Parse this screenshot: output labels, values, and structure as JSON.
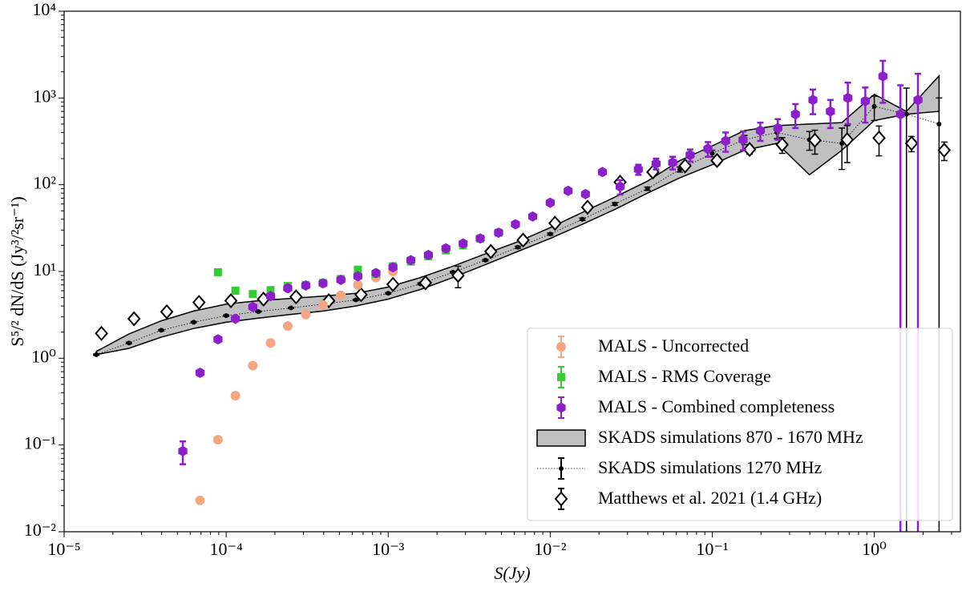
{
  "chart_data": {
    "type": "scatter",
    "xscale": "log",
    "yscale": "log",
    "xlabel": "S(Jy)",
    "ylabel": "S⁵/² dN/dS (Jy³/²sr⁻¹)",
    "xlim": [
      1e-05,
      3.4
    ],
    "ylim": [
      0.01,
      10000
    ],
    "xticks": [
      {
        "value": 1e-05,
        "label": "10⁻⁵"
      },
      {
        "value": 0.0001,
        "label": "10⁻⁴"
      },
      {
        "value": 0.001,
        "label": "10⁻³"
      },
      {
        "value": 0.01,
        "label": "10⁻²"
      },
      {
        "value": 0.1,
        "label": "10⁻¹"
      },
      {
        "value": 1,
        "label": "10⁰"
      }
    ],
    "yticks": [
      {
        "value": 0.01,
        "label": "10⁻²"
      },
      {
        "value": 0.1,
        "label": "10⁻¹"
      },
      {
        "value": 1,
        "label": "10⁰"
      },
      {
        "value": 10,
        "label": "10¹"
      },
      {
        "value": 100,
        "label": "10²"
      },
      {
        "value": 1000,
        "label": "10³"
      },
      {
        "value": 10000,
        "label": "10⁴"
      }
    ],
    "legend": "lower right",
    "series": [
      {
        "name": "MALS - Uncorrected",
        "color": "#f4a582",
        "marker": "circle",
        "x": [
          6.9e-05,
          8.9e-05,
          0.000114,
          0.000146,
          0.000188,
          0.00024,
          0.00031,
          0.000396,
          0.00051,
          0.00065,
          0.00084,
          0.00107
        ],
        "values": [
          0.023,
          0.115,
          0.37,
          0.82,
          1.5,
          2.35,
          3.2,
          4.1,
          5.3,
          7.0,
          8.5,
          10
        ]
      },
      {
        "name": "MALS - RMS Coverage",
        "color": "#33cc33",
        "marker": "square",
        "x": [
          8.9e-05,
          0.000114,
          0.000146,
          0.000188,
          0.00024,
          0.00031,
          0.000396,
          0.00051,
          0.00065,
          0.00084,
          0.00107,
          0.00138,
          0.00177,
          0.00227,
          0.0029,
          0.0037,
          0.0048
        ],
        "values": [
          9.8,
          6.0,
          5.5,
          6.1,
          6.8,
          7.0,
          7.4,
          8.2,
          10.5,
          9.4,
          11.5,
          13,
          15,
          17.5,
          20,
          24,
          28
        ],
        "errors": [
          0.3,
          0.2,
          0.2,
          0.2,
          0.2,
          0.2,
          0.2,
          0.3,
          0.4,
          0.4,
          0.5,
          0.5,
          0.6,
          0.7,
          0.8,
          1,
          1.2
        ]
      },
      {
        "name": "MALS - Combined completeness",
        "color": "#8b1fc9",
        "marker": "hexagon",
        "x": [
          5.4e-05,
          6.9e-05,
          8.9e-05,
          0.000114,
          0.000146,
          0.000188,
          0.00024,
          0.00031,
          0.000396,
          0.00051,
          0.00065,
          0.00084,
          0.00107,
          0.00138,
          0.00177,
          0.00227,
          0.0029,
          0.0037,
          0.0048,
          0.0061,
          0.0078,
          0.01,
          0.0129,
          0.0165,
          0.021,
          0.027,
          0.035,
          0.045,
          0.057,
          0.073,
          0.094,
          0.121,
          0.155,
          0.198,
          0.254,
          0.326,
          0.418,
          0.536,
          0.687,
          0.88,
          1.13,
          1.45,
          1.86
        ],
        "values": [
          0.085,
          0.68,
          1.65,
          2.85,
          3.9,
          5.2,
          6.4,
          6.9,
          7.3,
          8.0,
          8.8,
          9.6,
          11.2,
          13.5,
          15.5,
          18.5,
          21,
          24,
          28,
          35,
          43,
          62,
          85,
          78,
          140,
          95,
          150,
          175,
          180,
          220,
          260,
          320,
          330,
          420,
          450,
          650,
          950,
          700,
          1000,
          920,
          1780,
          650,
          950
        ],
        "errors": [
          0.025,
          0.05,
          0.1,
          0.15,
          0.2,
          0.25,
          0.3,
          0.3,
          0.35,
          0.4,
          0.4,
          0.45,
          0.5,
          0.6,
          0.7,
          0.8,
          0.9,
          1,
          1.2,
          1.5,
          2,
          3,
          4,
          4,
          6,
          18,
          20,
          25,
          30,
          35,
          50,
          80,
          80,
          100,
          120,
          200,
          300,
          250,
          500,
          400,
          900,
          750,
          950
        ]
      },
      {
        "name": "SKADS simulations 870 - 1670 MHz",
        "color": "#c0c0c0",
        "marker": "band",
        "x": [
          1.58e-05,
          2.51e-05,
          3.98e-05,
          6.31e-05,
          0.0001,
          0.000158,
          0.000251,
          0.000398,
          0.000631,
          0.001,
          0.00158,
          0.00251,
          0.00398,
          0.00631,
          0.01,
          0.0158,
          0.0251,
          0.0398,
          0.0631,
          0.1,
          0.158,
          0.251,
          0.398,
          0.631,
          1,
          1.58,
          2.51
        ],
        "lower": [
          1.1,
          1.3,
          1.75,
          2.2,
          2.6,
          2.9,
          3.2,
          3.5,
          4.0,
          4.8,
          6.2,
          8.5,
          12,
          17,
          24,
          35,
          52,
          80,
          120,
          170,
          250,
          300,
          130,
          250,
          550,
          650,
          700
        ],
        "upper": [
          1.2,
          1.9,
          2.7,
          3.5,
          4.2,
          4.6,
          4.9,
          5.2,
          5.6,
          6.6,
          8.5,
          11.5,
          16,
          22,
          32,
          48,
          72,
          110,
          190,
          280,
          420,
          480,
          500,
          520,
          1100,
          700,
          1800
        ]
      },
      {
        "name": "SKADS simulations 1270 MHz",
        "color": "#000000",
        "marker": "dot",
        "x": [
          1.58e-05,
          2.51e-05,
          3.98e-05,
          6.31e-05,
          0.0001,
          0.000158,
          0.000251,
          0.000398,
          0.000631,
          0.001,
          0.00158,
          0.00251,
          0.00398,
          0.00631,
          0.01,
          0.0158,
          0.0251,
          0.0398,
          0.0631,
          0.1,
          0.158,
          0.251,
          0.398,
          0.631,
          1,
          1.58,
          2.51
        ],
        "values": [
          1.1,
          1.5,
          2.1,
          2.6,
          3.1,
          3.45,
          3.8,
          4.2,
          4.7,
          5.6,
          7.2,
          9.8,
          13.5,
          19,
          27,
          40,
          60,
          90,
          150,
          230,
          330,
          400,
          330,
          300,
          800,
          650,
          500
        ],
        "errors": [
          0.02,
          0.03,
          0.04,
          0.05,
          0.05,
          0.05,
          0.06,
          0.07,
          0.08,
          0.1,
          0.15,
          0.2,
          0.3,
          0.5,
          0.7,
          1.2,
          2,
          4,
          10,
          20,
          40,
          60,
          80,
          150,
          250,
          650,
          500
        ]
      },
      {
        "name": "Matthews et al. 2021 (1.4 GHz)",
        "color": "#000000",
        "marker": "diamond",
        "x": [
          1.7e-05,
          2.7e-05,
          4.3e-05,
          6.8e-05,
          0.000107,
          0.00017,
          0.00027,
          0.00043,
          0.00068,
          0.00107,
          0.0017,
          0.0027,
          0.0043,
          0.0068,
          0.0107,
          0.017,
          0.027,
          0.043,
          0.068,
          0.107,
          0.17,
          0.27,
          0.43,
          0.68,
          1.07,
          1.7,
          2.7
        ],
        "values": [
          1.93,
          2.85,
          3.43,
          4.4,
          4.6,
          4.8,
          5.1,
          4.6,
          5.4,
          7.1,
          7.4,
          9.0,
          17,
          23,
          36,
          55,
          107,
          140,
          165,
          190,
          255,
          290,
          325,
          330,
          345,
          300,
          250
        ],
        "errors": [
          0.05,
          0.06,
          0.08,
          0.1,
          0.1,
          0.1,
          0.1,
          0.1,
          0.2,
          0.3,
          0.6,
          2.5,
          1,
          1.5,
          2,
          3,
          6,
          10,
          15,
          20,
          30,
          60,
          100,
          150,
          130,
          60,
          60
        ]
      }
    ]
  }
}
